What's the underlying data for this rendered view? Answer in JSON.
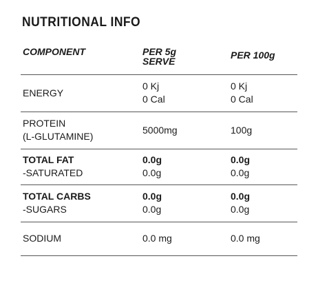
{
  "header": {
    "title": "NUTRITIONAL INFO"
  },
  "table": {
    "columns": [
      [
        "COMPONENT"
      ],
      [
        "PER 5g",
        "SERVE"
      ],
      [
        "PER 100g"
      ]
    ],
    "rows": [
      [
        [
          "ENERGY"
        ],
        [
          "0 Kj",
          "0 Cal"
        ],
        [
          "0 Kj",
          "0 Cal"
        ]
      ],
      [
        [
          "PROTEIN",
          "(L-GLUTAMINE)"
        ],
        [
          "5000mg"
        ],
        [
          "100g"
        ]
      ],
      [
        [
          "TOTAL FAT",
          "-SATURATED"
        ],
        [
          "0.0g",
          "0.0g"
        ],
        [
          "0.0g",
          "0.0g"
        ]
      ],
      [
        [
          "TOTAL CARBS",
          "-SUGARS"
        ],
        [
          "0.0g",
          "0.0g"
        ],
        [
          "0.0g",
          "0.0g"
        ]
      ],
      [
        [
          "SODIUM"
        ],
        [
          "0.0 mg"
        ],
        [
          "0.0 mg"
        ]
      ]
    ]
  }
}
